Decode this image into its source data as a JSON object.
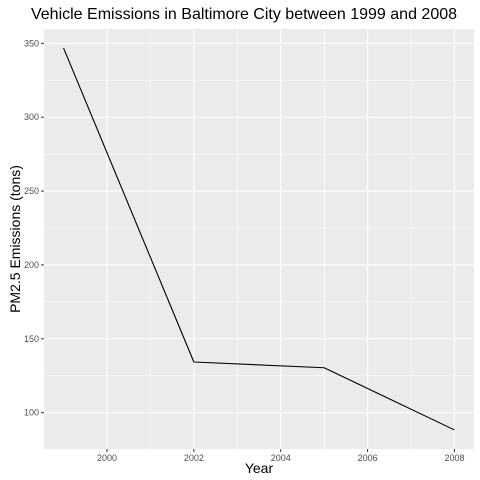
{
  "chart_data": {
    "type": "line",
    "title": "Vehicle Emissions in Baltimore City between 1999 and 2008",
    "xlabel": "Year",
    "ylabel": "PM2.5 Emissions (tons)",
    "x": [
      1999,
      2002,
      2005,
      2008
    ],
    "series": [
      {
        "values": [
          346.8,
          134.3,
          130.4,
          88.3
        ]
      }
    ],
    "xlim": [
      1998.55,
      2008.45
    ],
    "ylim": [
      75.4,
      359.7
    ],
    "xticks": [
      2000,
      2002,
      2004,
      2006,
      2008
    ],
    "xtick_labels": [
      "2000",
      "2002",
      "2004",
      "2006",
      "2008"
    ],
    "yticks": [
      100,
      150,
      200,
      250,
      300,
      350
    ],
    "ytick_labels": [
      "100",
      "150",
      "200",
      "250",
      "300",
      "350"
    ],
    "grid": true,
    "legend": "none",
    "colors": {
      "panel_background": "#ebebeb",
      "grid_major": "#ffffff",
      "line": "#000000",
      "tick_text": "#4d4d4d",
      "tick_mark": "#333333"
    }
  }
}
